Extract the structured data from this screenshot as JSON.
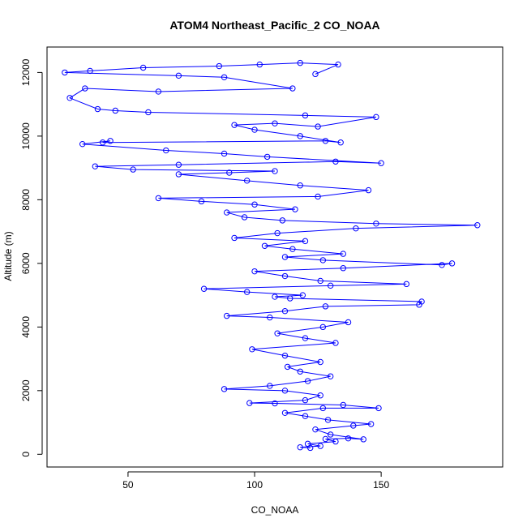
{
  "chart_data": {
    "type": "scatter",
    "title": "ATOM4 Northeast_Pacific_2 CO_NOAA",
    "xlabel": "CO_NOAA",
    "ylabel": "Altitude (m)",
    "xlim": [
      18,
      198
    ],
    "ylim": [
      -400,
      12800
    ],
    "x_ticks": [
      50,
      100,
      150
    ],
    "y_ticks": [
      0,
      2000,
      4000,
      6000,
      8000,
      10000,
      12000
    ],
    "grid": false,
    "legend": "none",
    "series": [
      {
        "marker": "open-circle",
        "line": true,
        "color": "#0000ff",
        "points": [
          [
            122,
            200
          ],
          [
            118,
            220
          ],
          [
            126,
            260
          ],
          [
            121,
            330
          ],
          [
            132,
            400
          ],
          [
            128,
            480
          ],
          [
            137,
            500
          ],
          [
            143,
            470
          ],
          [
            130,
            620
          ],
          [
            124,
            780
          ],
          [
            139,
            900
          ],
          [
            146,
            950
          ],
          [
            129,
            1080
          ],
          [
            120,
            1200
          ],
          [
            112,
            1300
          ],
          [
            127,
            1450
          ],
          [
            149,
            1450
          ],
          [
            135,
            1550
          ],
          [
            108,
            1600
          ],
          [
            98,
            1610
          ],
          [
            120,
            1700
          ],
          [
            126,
            1850
          ],
          [
            112,
            2000
          ],
          [
            88,
            2050
          ],
          [
            106,
            2150
          ],
          [
            121,
            2300
          ],
          [
            130,
            2450
          ],
          [
            118,
            2600
          ],
          [
            113,
            2750
          ],
          [
            126,
            2900
          ],
          [
            112,
            3100
          ],
          [
            99,
            3300
          ],
          [
            132,
            3500
          ],
          [
            120,
            3650
          ],
          [
            109,
            3800
          ],
          [
            127,
            4000
          ],
          [
            137,
            4150
          ],
          [
            106,
            4300
          ],
          [
            89,
            4350
          ],
          [
            112,
            4500
          ],
          [
            128,
            4650
          ],
          [
            165,
            4700
          ],
          [
            166,
            4800
          ],
          [
            114,
            4900
          ],
          [
            108,
            4950
          ],
          [
            119,
            5000
          ],
          [
            97,
            5100
          ],
          [
            80,
            5200
          ],
          [
            130,
            5300
          ],
          [
            160,
            5350
          ],
          [
            126,
            5450
          ],
          [
            112,
            5600
          ],
          [
            100,
            5750
          ],
          [
            135,
            5850
          ],
          [
            178,
            6000
          ],
          [
            174,
            5950
          ],
          [
            127,
            6100
          ],
          [
            112,
            6200
          ],
          [
            135,
            6300
          ],
          [
            115,
            6450
          ],
          [
            104,
            6550
          ],
          [
            120,
            6700
          ],
          [
            92,
            6800
          ],
          [
            109,
            6950
          ],
          [
            140,
            7100
          ],
          [
            188,
            7200
          ],
          [
            148,
            7250
          ],
          [
            111,
            7350
          ],
          [
            96,
            7450
          ],
          [
            89,
            7600
          ],
          [
            116,
            7700
          ],
          [
            100,
            7850
          ],
          [
            79,
            7950
          ],
          [
            62,
            8050
          ],
          [
            125,
            8100
          ],
          [
            145,
            8300
          ],
          [
            118,
            8450
          ],
          [
            97,
            8600
          ],
          [
            70,
            8800
          ],
          [
            90,
            8850
          ],
          [
            108,
            8900
          ],
          [
            52,
            8950
          ],
          [
            37,
            9050
          ],
          [
            70,
            9100
          ],
          [
            132,
            9200
          ],
          [
            150,
            9150
          ],
          [
            105,
            9350
          ],
          [
            88,
            9450
          ],
          [
            65,
            9550
          ],
          [
            32,
            9750
          ],
          [
            43,
            9850
          ],
          [
            40,
            9800
          ],
          [
            128,
            9850
          ],
          [
            134,
            9800
          ],
          [
            118,
            10000
          ],
          [
            100,
            10200
          ],
          [
            92,
            10350
          ],
          [
            108,
            10400
          ],
          [
            125,
            10300
          ],
          [
            148,
            10600
          ],
          [
            120,
            10650
          ],
          [
            58,
            10750
          ],
          [
            45,
            10800
          ],
          [
            38,
            10850
          ],
          [
            27,
            11200
          ],
          [
            33,
            11500
          ],
          [
            62,
            11400
          ],
          [
            115,
            11500
          ],
          [
            88,
            11850
          ],
          [
            70,
            11900
          ],
          [
            25,
            12000
          ],
          [
            35,
            12050
          ],
          [
            56,
            12150
          ],
          [
            86,
            12200
          ],
          [
            102,
            12250
          ],
          [
            118,
            12300
          ],
          [
            133,
            12250
          ],
          [
            124,
            11950
          ]
        ]
      }
    ]
  }
}
